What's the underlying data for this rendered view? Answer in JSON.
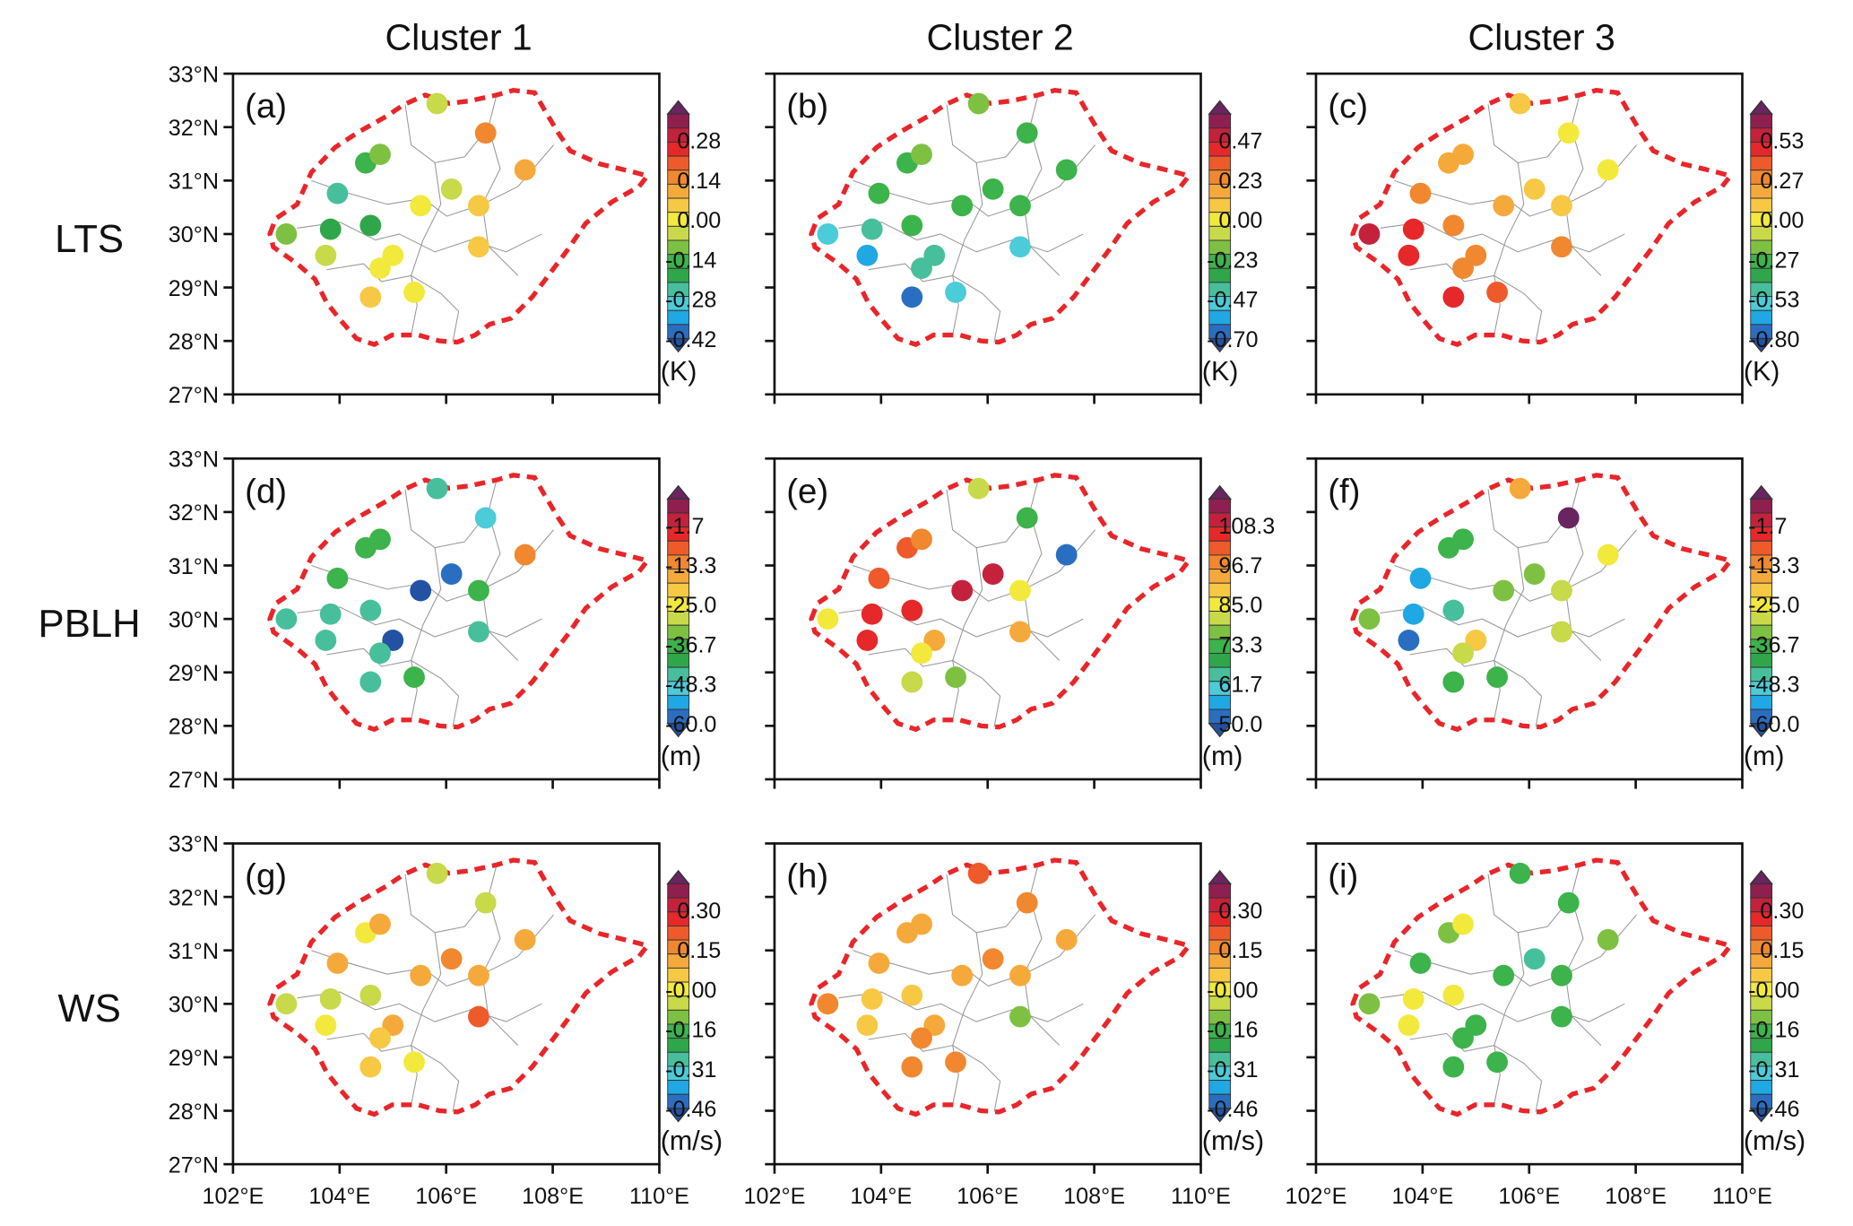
{
  "chart_data": {
    "type": "scatter",
    "title": "",
    "column_titles": [
      "Cluster 1",
      "Cluster 2",
      "Cluster 3"
    ],
    "row_titles": [
      "LTS",
      "PBLH",
      "WS"
    ],
    "xlim": [
      102,
      110
    ],
    "ylim": [
      27,
      33
    ],
    "x_ticks": [
      "102°E",
      "104°E",
      "106°E",
      "108°E",
      "110°E"
    ],
    "x_tick_values": [
      102,
      104,
      106,
      108,
      110
    ],
    "y_ticks": [
      "33°N",
      "32°N",
      "31°N",
      "30°N",
      "29°N",
      "28°N",
      "27°N"
    ],
    "y_tick_values": [
      33,
      32,
      31,
      30,
      29,
      28,
      27
    ],
    "palette": [
      "#2351a3",
      "#2a6ec2",
      "#1fa8e3",
      "#4ccbd8",
      "#47bf9c",
      "#30a64a",
      "#3cb34b",
      "#7ec142",
      "#c8d94a",
      "#f2e93c",
      "#f6c843",
      "#f6a93b",
      "#f1882f",
      "#ee5a2a",
      "#e6282b",
      "#c4213c",
      "#8e1f4e",
      "#6a2460"
    ],
    "stations": [
      {
        "lon": 105.83,
        "lat": 32.44
      },
      {
        "lon": 106.74,
        "lat": 31.89
      },
      {
        "lon": 107.48,
        "lat": 31.2
      },
      {
        "lon": 104.49,
        "lat": 31.33
      },
      {
        "lon": 104.76,
        "lat": 31.49
      },
      {
        "lon": 103.96,
        "lat": 30.76
      },
      {
        "lon": 106.1,
        "lat": 30.84
      },
      {
        "lon": 105.52,
        "lat": 30.53
      },
      {
        "lon": 106.61,
        "lat": 30.53
      },
      {
        "lon": 103.0,
        "lat": 30.0
      },
      {
        "lon": 103.83,
        "lat": 30.09
      },
      {
        "lon": 104.58,
        "lat": 30.16
      },
      {
        "lon": 103.74,
        "lat": 29.6
      },
      {
        "lon": 105.0,
        "lat": 29.6
      },
      {
        "lon": 104.76,
        "lat": 29.36
      },
      {
        "lon": 106.61,
        "lat": 29.76
      },
      {
        "lon": 104.58,
        "lat": 28.82
      },
      {
        "lon": 105.4,
        "lat": 28.91
      }
    ],
    "panels": [
      {
        "label": "(a)",
        "row": 0,
        "col": 0,
        "unit": "(K)",
        "cbar_labels": [
          "0.28",
          "0.14",
          "0.00",
          "-0.14",
          "-0.28",
          "-0.42"
        ],
        "levels": [
          8,
          12,
          11,
          6,
          7,
          4,
          8,
          9,
          10,
          7,
          5,
          5,
          8,
          9,
          9,
          10,
          10,
          9
        ]
      },
      {
        "label": "(b)",
        "row": 0,
        "col": 1,
        "unit": "(K)",
        "cbar_labels": [
          "0.47",
          "0.23",
          "0.00",
          "-0.23",
          "-0.47",
          "-0.70"
        ],
        "levels": [
          7,
          6,
          6,
          6,
          7,
          6,
          6,
          6,
          6,
          3,
          4,
          6,
          2,
          4,
          4,
          3,
          1,
          3
        ]
      },
      {
        "label": "(c)",
        "row": 0,
        "col": 2,
        "unit": "(K)",
        "cbar_labels": [
          "0.53",
          "0.27",
          "0.00",
          "-0.27",
          "-0.53",
          "-0.80"
        ],
        "levels": [
          10,
          9,
          9,
          11,
          11,
          12,
          10,
          11,
          10,
          15,
          14,
          12,
          14,
          12,
          12,
          12,
          14,
          13
        ]
      },
      {
        "label": "(d)",
        "row": 1,
        "col": 0,
        "unit": "(m)",
        "cbar_labels": [
          "-1.7",
          "-13.3",
          "-25.0",
          "-36.7",
          "-48.3",
          "-60.0"
        ],
        "levels": [
          4,
          3,
          12,
          6,
          6,
          6,
          1,
          0,
          6,
          4,
          4,
          4,
          4,
          0,
          4,
          4,
          4,
          6
        ]
      },
      {
        "label": "(e)",
        "row": 1,
        "col": 1,
        "unit": "(m)",
        "cbar_labels": [
          "108.3",
          "96.7",
          "85.0",
          "73.3",
          "61.7",
          "50.0"
        ],
        "levels": [
          8,
          6,
          1,
          13,
          12,
          13,
          15,
          15,
          9,
          9,
          14,
          14,
          14,
          11,
          9,
          11,
          8,
          7
        ]
      },
      {
        "label": "(f)",
        "row": 1,
        "col": 2,
        "unit": "(m)",
        "cbar_labels": [
          "-1.7",
          "-13.3",
          "-25.0",
          "-36.7",
          "-48.3",
          "-60.0"
        ],
        "levels": [
          11,
          17,
          9,
          6,
          6,
          2,
          7,
          7,
          8,
          7,
          2,
          4,
          1,
          10,
          8,
          8,
          6,
          6
        ]
      },
      {
        "label": "(g)",
        "row": 2,
        "col": 0,
        "unit": "(m/s)",
        "cbar_labels": [
          "0.30",
          "0.15",
          "-0.00",
          "-0.16",
          "-0.31",
          "-0.46"
        ],
        "levels": [
          8,
          8,
          11,
          9,
          11,
          11,
          12,
          11,
          11,
          8,
          8,
          8,
          9,
          11,
          10,
          13,
          10,
          9
        ]
      },
      {
        "label": "(h)",
        "row": 2,
        "col": 1,
        "unit": "(m/s)",
        "cbar_labels": [
          "0.30",
          "0.15",
          "-0.00",
          "-0.16",
          "-0.31",
          "-0.46"
        ],
        "levels": [
          13,
          12,
          11,
          11,
          11,
          11,
          12,
          11,
          11,
          12,
          10,
          10,
          10,
          11,
          12,
          7,
          12,
          12
        ]
      },
      {
        "label": "(i)",
        "row": 2,
        "col": 2,
        "unit": "(m/s)",
        "cbar_labels": [
          "0.30",
          "0.15",
          "-0.00",
          "-0.16",
          "-0.31",
          "-0.46"
        ],
        "levels": [
          6,
          6,
          7,
          7,
          9,
          6,
          4,
          6,
          6,
          7,
          9,
          9,
          9,
          6,
          6,
          6,
          6,
          6
        ]
      }
    ]
  }
}
